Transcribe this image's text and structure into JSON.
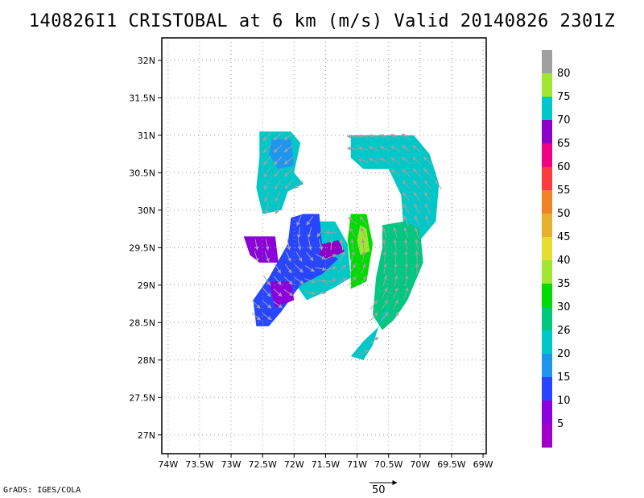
{
  "title": "140826I1 CRISTOBAL at 6 km (m/s) Valid 20140826 2301Z",
  "credit": "GrADS: IGES/COLA",
  "vector_reference": {
    "label": "50"
  },
  "map": {
    "lon_labels": [
      "74W",
      "73.5W",
      "73W",
      "72.5W",
      "72W",
      "71.5W",
      "71W",
      "70.5W",
      "70W",
      "69.5W",
      "69W"
    ],
    "lat_labels": [
      "32N",
      "31.5N",
      "31N",
      "30.5N",
      "30N",
      "29.5N",
      "29N",
      "28.5N",
      "28N",
      "27.5N",
      "27N"
    ],
    "grid": "dotted"
  },
  "colorbar": {
    "labels": [
      "80",
      "75",
      "70",
      "65",
      "60",
      "55",
      "50",
      "45",
      "40",
      "35",
      "30",
      "26",
      "20",
      "15",
      "10",
      "5"
    ],
    "colors_top_to_bottom": [
      "#a0a0a0",
      "#a0e632",
      "#00c8c8",
      "#8c00c8",
      "#f00082",
      "#fa3c3c",
      "#f08228",
      "#e6af2d",
      "#e6dc32",
      "#a0e632",
      "#00dc00",
      "#00c880",
      "#00c8c8",
      "#1e96f0",
      "#2846ff",
      "#8c00dc",
      "#a000c8"
    ]
  },
  "chart_data": {
    "type": "heatmap",
    "title": "140826I1 CRISTOBAL at 6 km (m/s) Valid 20140826 2301Z",
    "xlabel": "",
    "ylabel": "",
    "xlim": [
      -74.1,
      -68.95
    ],
    "ylim": [
      26.75,
      32.3
    ],
    "x_ticks": [
      "74W",
      "73.5W",
      "73W",
      "72.5W",
      "72W",
      "71.5W",
      "71W",
      "70.5W",
      "70W",
      "69.5W",
      "69W"
    ],
    "y_ticks": [
      "32N",
      "31.5N",
      "31N",
      "30.5N",
      "30N",
      "29.5N",
      "29N",
      "28.5N",
      "28N",
      "27.5N",
      "27N"
    ],
    "variable": "wind speed (m/s) with wind vectors",
    "regions": [
      {
        "name": "north band",
        "color": "#00c8c8",
        "points": [
          [
            -72.55,
            31.05
          ],
          [
            -72.05,
            31.05
          ],
          [
            -71.9,
            30.9
          ],
          [
            -72.0,
            30.5
          ],
          [
            -71.85,
            30.35
          ],
          [
            -72.1,
            30.25
          ],
          [
            -72.2,
            30.0
          ],
          [
            -72.5,
            29.95
          ],
          [
            -72.6,
            30.3
          ],
          [
            -72.55,
            30.7
          ]
        ]
      },
      {
        "name": "north band blue patch",
        "color": "#1e96f0",
        "points": [
          [
            -72.35,
            30.95
          ],
          [
            -72.05,
            30.95
          ],
          [
            -72.0,
            30.6
          ],
          [
            -72.25,
            30.55
          ],
          [
            -72.4,
            30.75
          ]
        ]
      },
      {
        "name": "northeast band",
        "color": "#00c8c8",
        "points": [
          [
            -71.1,
            31.0
          ],
          [
            -70.1,
            31.0
          ],
          [
            -69.85,
            30.75
          ],
          [
            -69.7,
            30.35
          ],
          [
            -69.75,
            29.85
          ],
          [
            -70.0,
            29.6
          ],
          [
            -70.25,
            29.6
          ],
          [
            -70.3,
            30.2
          ],
          [
            -70.5,
            30.55
          ],
          [
            -70.9,
            30.55
          ],
          [
            -71.1,
            30.7
          ]
        ]
      },
      {
        "name": "east band",
        "color": "#00c880",
        "points": [
          [
            -70.6,
            29.8
          ],
          [
            -70.25,
            29.85
          ],
          [
            -70.0,
            29.75
          ],
          [
            -69.95,
            29.3
          ],
          [
            -70.2,
            28.8
          ],
          [
            -70.4,
            28.55
          ],
          [
            -70.6,
            28.4
          ],
          [
            -70.75,
            28.6
          ],
          [
            -70.7,
            29.1
          ],
          [
            -70.6,
            29.5
          ]
        ]
      },
      {
        "name": "southeast tail",
        "color": "#00c8c8",
        "points": [
          [
            -70.6,
            28.6
          ],
          [
            -70.45,
            28.75
          ],
          [
            -70.65,
            28.45
          ],
          [
            -70.9,
            28.25
          ],
          [
            -71.1,
            28.05
          ],
          [
            -70.9,
            28.0
          ],
          [
            -70.75,
            28.2
          ]
        ]
      },
      {
        "name": "west cyan ring",
        "color": "#00c8c8",
        "points": [
          [
            -71.8,
            29.85
          ],
          [
            -71.35,
            29.85
          ],
          [
            -71.15,
            29.55
          ],
          [
            -71.1,
            29.1
          ],
          [
            -71.4,
            28.95
          ],
          [
            -71.8,
            28.8
          ],
          [
            -72.05,
            29.1
          ],
          [
            -72.0,
            29.5
          ]
        ]
      },
      {
        "name": "blue core",
        "color": "#2846ff",
        "points": [
          [
            -71.85,
            29.95
          ],
          [
            -71.6,
            29.95
          ],
          [
            -71.55,
            29.5
          ],
          [
            -71.3,
            29.35
          ],
          [
            -71.55,
            29.15
          ],
          [
            -71.9,
            29.0
          ],
          [
            -72.2,
            28.65
          ],
          [
            -72.4,
            28.45
          ],
          [
            -72.6,
            28.45
          ],
          [
            -72.65,
            28.8
          ],
          [
            -72.4,
            29.1
          ],
          [
            -72.1,
            29.55
          ],
          [
            -72.05,
            29.9
          ]
        ]
      },
      {
        "name": "west purple",
        "color": "#8c00dc",
        "points": [
          [
            -72.8,
            29.65
          ],
          [
            -72.3,
            29.65
          ],
          [
            -72.25,
            29.3
          ],
          [
            -72.55,
            29.3
          ],
          [
            -72.7,
            29.4
          ]
        ]
      },
      {
        "name": "southwest purple",
        "color": "#8c00dc",
        "points": [
          [
            -72.4,
            29.05
          ],
          [
            -72.05,
            29.05
          ],
          [
            -72.0,
            28.8
          ],
          [
            -72.3,
            28.7
          ]
        ]
      },
      {
        "name": "inner purple",
        "color": "#8c00c8",
        "points": [
          [
            -71.55,
            29.55
          ],
          [
            -71.3,
            29.6
          ],
          [
            -71.2,
            29.45
          ],
          [
            -71.45,
            29.35
          ],
          [
            -71.6,
            29.4
          ]
        ]
      },
      {
        "name": "green eyewall",
        "color": "#00dc00",
        "points": [
          [
            -71.1,
            29.95
          ],
          [
            -70.85,
            29.95
          ],
          [
            -70.75,
            29.55
          ],
          [
            -70.85,
            29.05
          ],
          [
            -71.1,
            28.95
          ],
          [
            -71.1,
            29.3
          ],
          [
            -71.15,
            29.6
          ]
        ]
      },
      {
        "name": "light green eyewall",
        "color": "#a0e632",
        "points": [
          [
            -70.95,
            29.8
          ],
          [
            -70.85,
            29.75
          ],
          [
            -70.8,
            29.45
          ],
          [
            -70.95,
            29.4
          ],
          [
            -71.0,
            29.6
          ]
        ]
      }
    ]
  }
}
